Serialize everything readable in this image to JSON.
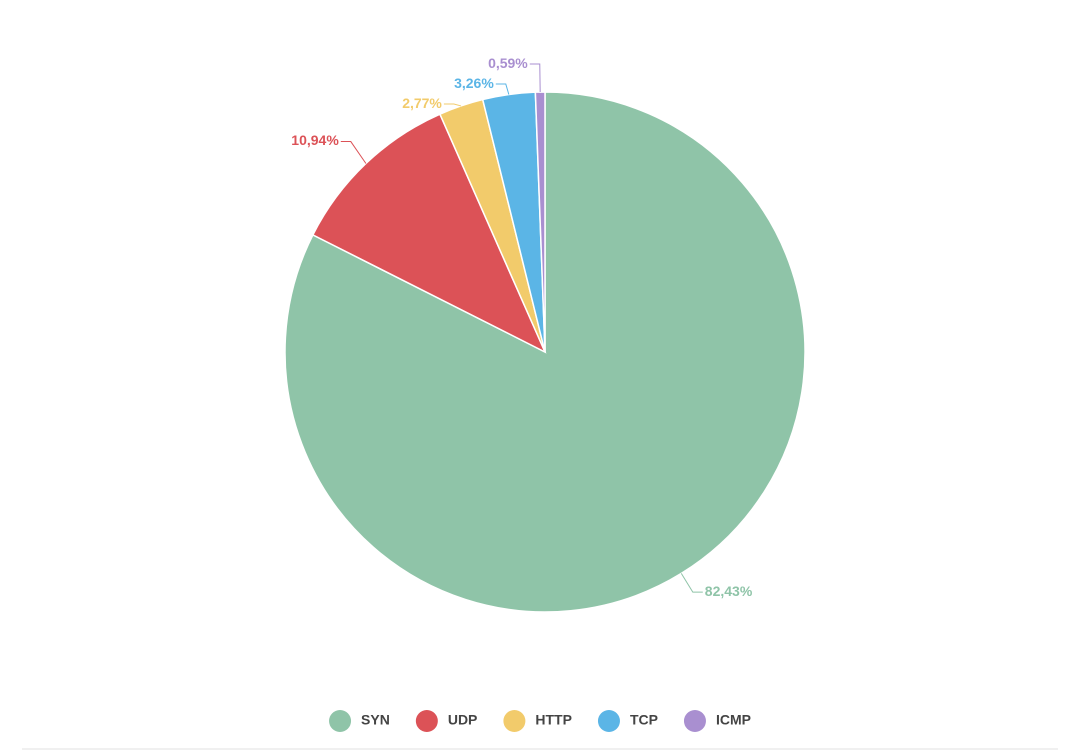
{
  "chart_data": {
    "type": "pie",
    "categories": [
      "SYN",
      "UDP",
      "HTTP",
      "TCP",
      "ICMP"
    ],
    "values": [
      82.43,
      10.94,
      2.77,
      3.26,
      0.59
    ],
    "value_labels": [
      "82,43%",
      "10,94%",
      "2,77%",
      "3,26%",
      "0,59%"
    ],
    "colors": [
      "#8fc4a8",
      "#dc5257",
      "#f2cb6b",
      "#5bb5e6",
      "#a98fd0"
    ],
    "legend": "bottom"
  }
}
